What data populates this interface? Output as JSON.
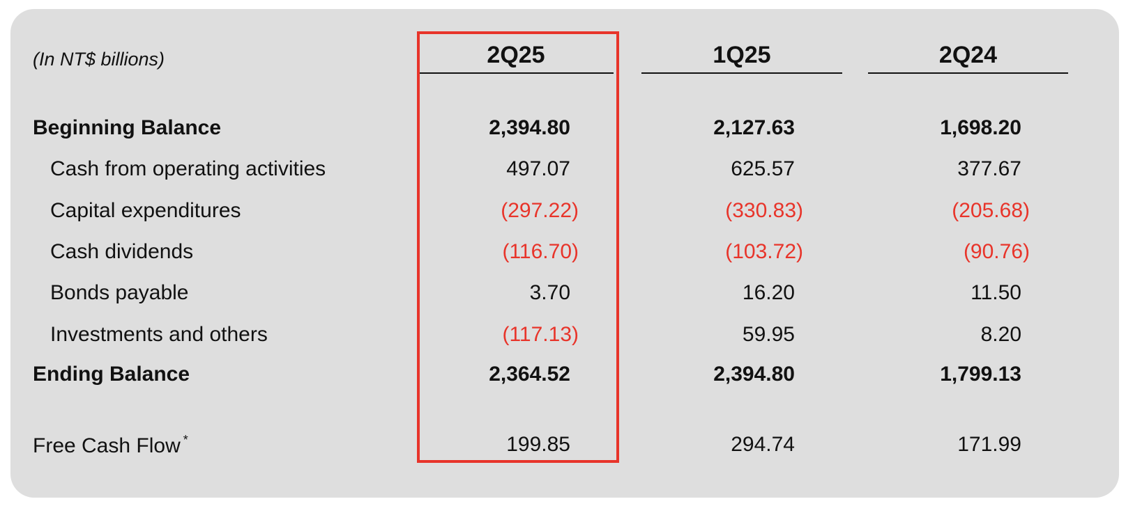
{
  "units_label": "(In NT$ billions)",
  "columns": [
    "2Q25",
    "1Q25",
    "2Q24"
  ],
  "highlight_color": "#e8342a",
  "negative_color": "#e8342a",
  "rows": [
    {
      "label": "Beginning Balance",
      "values": [
        "2,394.80",
        "2,127.63",
        "1,698.20"
      ]
    },
    {
      "label": "Cash from operating activities",
      "values": [
        "497.07",
        "625.57",
        "377.67"
      ]
    },
    {
      "label": "Capital expenditures",
      "values": [
        "(297.22)",
        "(330.83)",
        "(205.68)"
      ]
    },
    {
      "label": "Cash dividends",
      "values": [
        "(116.70)",
        "(103.72)",
        "(90.76)"
      ]
    },
    {
      "label": "Bonds payable",
      "values": [
        "3.70",
        "16.20",
        "11.50"
      ]
    },
    {
      "label": "Investments and others",
      "values": [
        "(117.13)",
        "59.95",
        "8.20"
      ]
    },
    {
      "label": "Ending Balance",
      "values": [
        "2,364.52",
        "2,394.80",
        "1,799.13"
      ]
    },
    {
      "label": "Free Cash Flow",
      "values": [
        "199.85",
        "294.74",
        "171.99"
      ]
    }
  ],
  "footnote_marker": "*"
}
